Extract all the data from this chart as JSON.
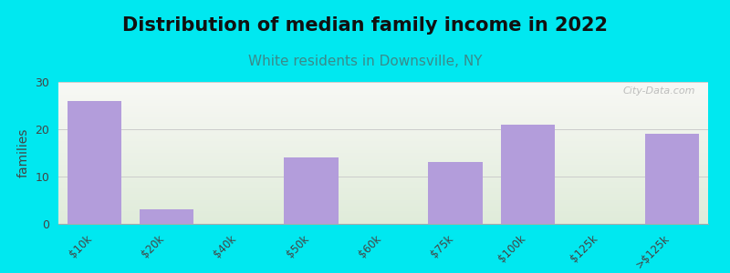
{
  "title": "Distribution of median family income in 2022",
  "subtitle": "White residents in Downsville, NY",
  "categories": [
    "$10k",
    "$20k",
    "$40k",
    "$50k",
    "$60k",
    "$75k",
    "$100k",
    "$125k",
    ">$125k"
  ],
  "values": [
    26,
    3,
    0,
    14,
    0,
    13,
    21,
    0,
    19
  ],
  "bar_color": "#b39ddb",
  "ylabel": "families",
  "ylim": [
    0,
    30
  ],
  "yticks": [
    0,
    10,
    20,
    30
  ],
  "background_color": "#00e8f0",
  "plot_bg_color_top": "#f2f4ee",
  "plot_bg_color_bottom": "#e0ecda",
  "title_fontsize": 15,
  "subtitle_fontsize": 11,
  "subtitle_color": "#3a8a8a",
  "watermark": "City-Data.com",
  "bar_width": 0.75
}
